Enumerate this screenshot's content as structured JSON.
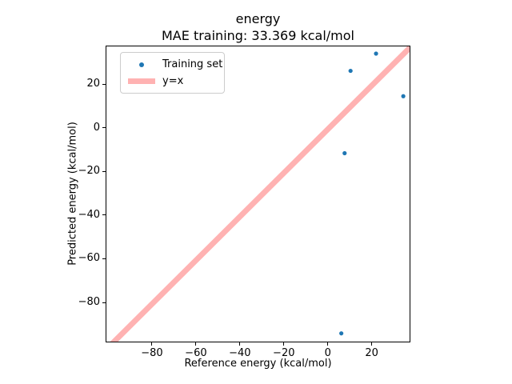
{
  "chart_data": {
    "type": "scatter",
    "title": "energy",
    "subtitle": "MAE training: 33.369 kcal/mol",
    "xlabel": "Reference energy (kcal/mol)",
    "ylabel": "Predicted energy (kcal/mol)",
    "xlim": [
      -101.1,
      37.6
    ],
    "ylim": [
      -98.3,
      37.6
    ],
    "xticks": [
      -80,
      -60,
      -40,
      -20,
      0,
      20
    ],
    "yticks": [
      20,
      0,
      -20,
      -40,
      -60,
      -80
    ],
    "grid": false,
    "legend_position": "upper left",
    "series": [
      {
        "name": "Training set",
        "kind": "scatter",
        "color": "#1f77b4",
        "marker": "dot",
        "marker_radius": 2.6,
        "points": [
          [
            21.6,
            34.3
          ],
          [
            10.0,
            26.4
          ],
          [
            34.0,
            14.8
          ],
          [
            7.3,
            -11.3
          ],
          [
            5.8,
            -93.8
          ]
        ]
      },
      {
        "name": "y=x",
        "kind": "line",
        "color": "#ffb2b2",
        "linewidth": 7,
        "x": [
          -110,
          45
        ],
        "y": [
          -110,
          45
        ]
      }
    ]
  },
  "style": {
    "background": "#ffffff",
    "spine_color": "#000000",
    "tick_color": "#000000",
    "text_color": "#000000",
    "legend_border": "#cccccc",
    "minus_sign": "−"
  }
}
